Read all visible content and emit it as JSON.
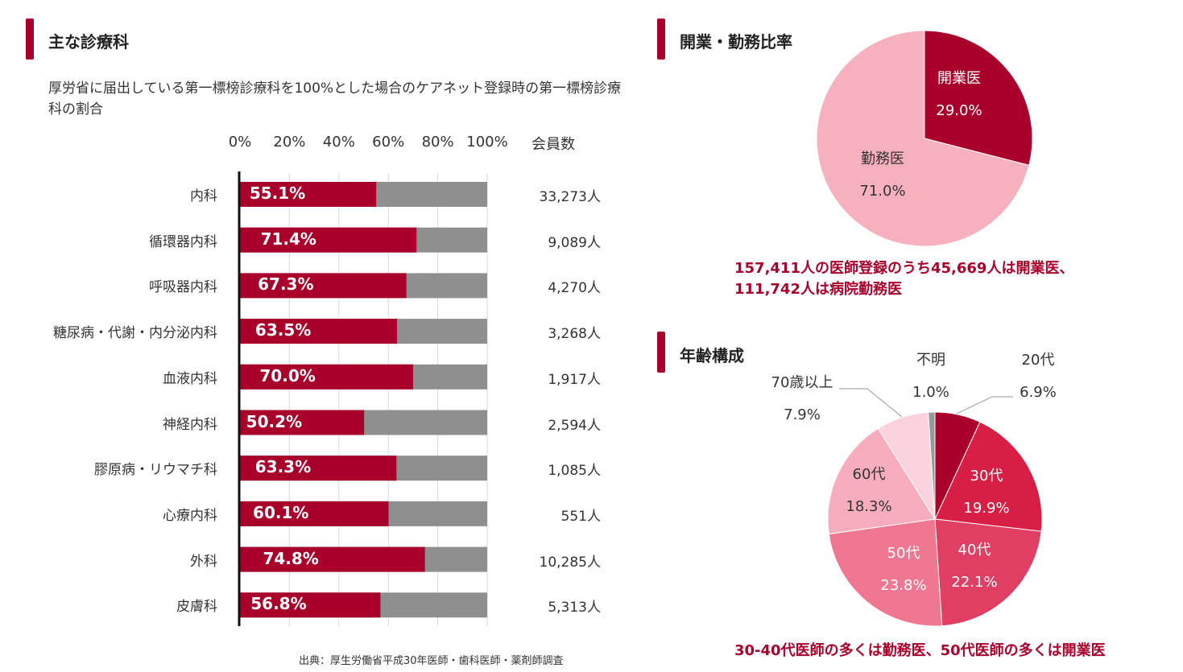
{
  "left": {
    "title": "主な診療科",
    "subtitle": "厚労省に届出している第一標榜診療科を100%とした場合のケアネット登録時の第一標榜診療科の割合",
    "count_header": "会員数",
    "source": "出典：厚生労働省平成30年医師・歯科医師・薬剤師調査"
  },
  "right_top": {
    "title": "開業・勤務比率",
    "note_lines": [
      "157,411人の医師登録のうち45,669人は開業医、",
      "111,742人は病院勤務医"
    ]
  },
  "right_bottom": {
    "title": "年齢構成",
    "note": "30-40代医師の多くは勤務医、50代医師の多くは開業医"
  },
  "chart_data": [
    {
      "type": "bar",
      "orientation": "horizontal",
      "stacked": true,
      "xlim": [
        0,
        100
      ],
      "ticks": [
        "0%",
        "20%",
        "40%",
        "60%",
        "80%",
        "100%"
      ],
      "categories": [
        "内科",
        "循環器内科",
        "呼吸器内科",
        "糖尿病・代謝・内分泌内科",
        "血液内科",
        "神経内科",
        "膠原病・リウマチ科",
        "心療内科",
        "外科",
        "皮膚科"
      ],
      "values": [
        55.1,
        71.4,
        67.3,
        63.5,
        70.0,
        50.2,
        63.3,
        60.1,
        74.8,
        56.8
      ],
      "value_labels": [
        "55.1%",
        "71.4%",
        "67.3%",
        "63.5%",
        "70.0%",
        "50.2%",
        "63.3%",
        "60.1%",
        "74.8%",
        "56.8%"
      ],
      "members": [
        "33,273人",
        "9,089人",
        "4,270人",
        "3,268人",
        "1,917人",
        "2,594人",
        "1,085人",
        "551人",
        "10,285人",
        "5,313人"
      ],
      "colors": {
        "value": "#a8002a",
        "remainder": "#8f8f8f"
      }
    },
    {
      "type": "pie",
      "slices": [
        {
          "label": "開業医",
          "value": 29.0,
          "value_label": "29.0%",
          "color": "#a8002a"
        },
        {
          "label": "勤務医",
          "value": 71.0,
          "value_label": "71.0%",
          "color": "#f7b0be"
        }
      ]
    },
    {
      "type": "pie",
      "slices": [
        {
          "label": "20代",
          "value": 6.9,
          "value_label": "6.9%",
          "color": "#a8002a"
        },
        {
          "label": "30代",
          "value": 19.9,
          "value_label": "19.9%",
          "color": "#d81e45"
        },
        {
          "label": "40代",
          "value": 22.1,
          "value_label": "22.1%",
          "color": "#e03e62"
        },
        {
          "label": "50代",
          "value": 23.8,
          "value_label": "23.8%",
          "color": "#f07791"
        },
        {
          "label": "60代",
          "value": 18.3,
          "value_label": "18.3%",
          "color": "#f7adbd"
        },
        {
          "label": "70歳以上",
          "value": 7.9,
          "value_label": "7.9%",
          "color": "#fbd3dc"
        },
        {
          "label": "不明",
          "value": 1.0,
          "value_label": "1.0%",
          "color": "#999999"
        }
      ]
    }
  ]
}
